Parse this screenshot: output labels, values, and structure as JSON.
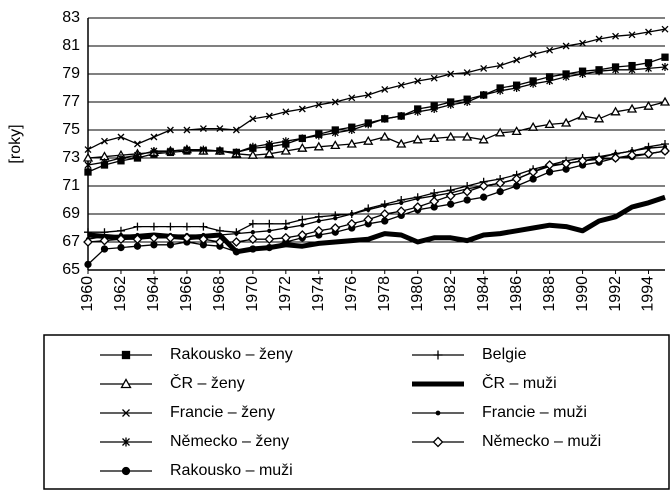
{
  "chart_data": {
    "type": "line",
    "ylabel": "[roky]",
    "x": [
      1960,
      1961,
      1962,
      1963,
      1964,
      1965,
      1966,
      1967,
      1968,
      1969,
      1970,
      1971,
      1972,
      1973,
      1974,
      1975,
      1976,
      1977,
      1978,
      1979,
      1980,
      1981,
      1982,
      1983,
      1984,
      1985,
      1986,
      1987,
      1988,
      1989,
      1990,
      1991,
      1992,
      1993,
      1994,
      1995
    ],
    "xlim": [
      1960,
      1995
    ],
    "xticks": [
      1960,
      1962,
      1964,
      1966,
      1968,
      1970,
      1972,
      1974,
      1976,
      1978,
      1980,
      1982,
      1984,
      1986,
      1988,
      1990,
      1992,
      1994
    ],
    "ylim": [
      65,
      83
    ],
    "yticks": [
      65,
      67,
      69,
      71,
      73,
      75,
      77,
      79,
      81,
      83
    ],
    "grid": true,
    "series": [
      {
        "name": "Rakousko – ženy",
        "color": "#000000",
        "marker": "square",
        "values": [
          72.0,
          72.5,
          72.8,
          73.0,
          73.3,
          73.4,
          73.5,
          73.5,
          73.5,
          73.4,
          73.7,
          73.8,
          74.0,
          74.4,
          74.7,
          75.0,
          75.2,
          75.5,
          75.8,
          76.0,
          76.5,
          76.7,
          77.0,
          77.2,
          77.5,
          78.0,
          78.2,
          78.5,
          78.8,
          79.0,
          79.2,
          79.3,
          79.5,
          79.6,
          79.8,
          80.2
        ]
      },
      {
        "name": "ČR – ženy",
        "color": "#000000",
        "marker": "triangle",
        "values": [
          73.0,
          73.1,
          73.2,
          73.3,
          73.4,
          73.5,
          73.6,
          73.5,
          73.5,
          73.3,
          73.2,
          73.3,
          73.5,
          73.7,
          73.8,
          73.9,
          74.0,
          74.2,
          74.5,
          74.0,
          74.3,
          74.4,
          74.5,
          74.5,
          74.3,
          74.8,
          74.9,
          75.2,
          75.4,
          75.5,
          76.0,
          75.8,
          76.3,
          76.5,
          76.7,
          77.0
        ]
      },
      {
        "name": "Francie – ženy",
        "color": "#000000",
        "marker": "x",
        "values": [
          73.6,
          74.2,
          74.5,
          74.0,
          74.5,
          75.0,
          75.0,
          75.1,
          75.1,
          75.0,
          75.8,
          76.0,
          76.3,
          76.5,
          76.8,
          77.0,
          77.3,
          77.5,
          77.9,
          78.2,
          78.5,
          78.7,
          79.0,
          79.1,
          79.4,
          79.6,
          80.0,
          80.4,
          80.7,
          81.0,
          81.2,
          81.5,
          81.7,
          81.8,
          82.0,
          82.2
        ]
      },
      {
        "name": "Německo – ženy",
        "color": "#000000",
        "marker": "asterisk",
        "values": [
          72.5,
          72.7,
          73.0,
          73.2,
          73.5,
          73.5,
          73.6,
          73.6,
          73.5,
          73.4,
          73.8,
          74.0,
          74.2,
          74.4,
          74.6,
          74.8,
          75.0,
          75.4,
          75.8,
          76.0,
          76.3,
          76.5,
          76.8,
          77.0,
          77.5,
          77.8,
          78.0,
          78.3,
          78.5,
          78.8,
          79.0,
          79.2,
          79.3,
          79.3,
          79.4,
          79.5
        ]
      },
      {
        "name": "Rakousko – muži",
        "color": "#000000",
        "marker": "circle",
        "values": [
          65.4,
          66.5,
          66.6,
          66.7,
          66.8,
          66.8,
          67.0,
          66.8,
          66.7,
          66.3,
          66.5,
          66.6,
          67.0,
          67.3,
          67.5,
          67.7,
          68.0,
          68.3,
          68.5,
          68.9,
          69.3,
          69.5,
          69.7,
          70.0,
          70.2,
          70.6,
          71.0,
          71.5,
          72.0,
          72.2,
          72.5,
          72.7,
          73.0,
          73.1,
          73.3,
          73.5
        ]
      },
      {
        "name": "Belgie",
        "color": "#000000",
        "marker": "plus",
        "values": [
          67.7,
          67.7,
          67.8,
          68.1,
          68.1,
          68.1,
          68.1,
          68.1,
          67.8,
          67.7,
          68.3,
          68.3,
          68.3,
          68.6,
          68.8,
          68.9,
          69.0,
          69.4,
          69.7,
          70.0,
          70.2,
          70.5,
          70.7,
          71.0,
          71.3,
          71.5,
          71.8,
          72.2,
          72.5,
          72.8,
          73.0,
          73.1,
          73.3,
          73.5,
          73.8,
          74.0
        ]
      },
      {
        "name": "ČR – muži",
        "color": "#000000",
        "marker": "none",
        "line_width": 5,
        "values": [
          67.5,
          67.4,
          67.3,
          67.4,
          67.5,
          67.4,
          67.3,
          67.4,
          67.5,
          66.3,
          66.5,
          66.6,
          66.8,
          66.7,
          66.9,
          67.0,
          67.1,
          67.2,
          67.6,
          67.5,
          67.0,
          67.3,
          67.3,
          67.1,
          67.5,
          67.6,
          67.8,
          68.0,
          68.2,
          68.1,
          67.8,
          68.5,
          68.8,
          69.5,
          69.8,
          70.2
        ]
      },
      {
        "name": "Francie – muži",
        "color": "#000000",
        "marker": "dot",
        "values": [
          67.2,
          67.4,
          67.5,
          67.5,
          67.5,
          67.5,
          67.5,
          67.5,
          67.5,
          67.6,
          67.7,
          67.8,
          68.0,
          68.2,
          68.5,
          68.7,
          69.0,
          69.3,
          69.6,
          69.8,
          70.1,
          70.3,
          70.5,
          70.8,
          71.0,
          71.2,
          71.5,
          72.0,
          72.4,
          72.6,
          72.8,
          73.0,
          73.3,
          73.5,
          73.7,
          73.8
        ]
      },
      {
        "name": "Německo – muži",
        "color": "#000000",
        "marker": "diamond",
        "values": [
          67.0,
          67.1,
          67.2,
          67.2,
          67.3,
          67.3,
          67.3,
          67.2,
          67.0,
          67.0,
          67.2,
          67.2,
          67.3,
          67.5,
          67.8,
          68.0,
          68.3,
          68.6,
          69.0,
          69.2,
          69.5,
          69.9,
          70.3,
          70.6,
          71.0,
          71.2,
          71.5,
          72.0,
          72.5,
          72.6,
          72.8,
          72.9,
          73.0,
          73.2,
          73.3,
          73.5
        ]
      }
    ]
  }
}
